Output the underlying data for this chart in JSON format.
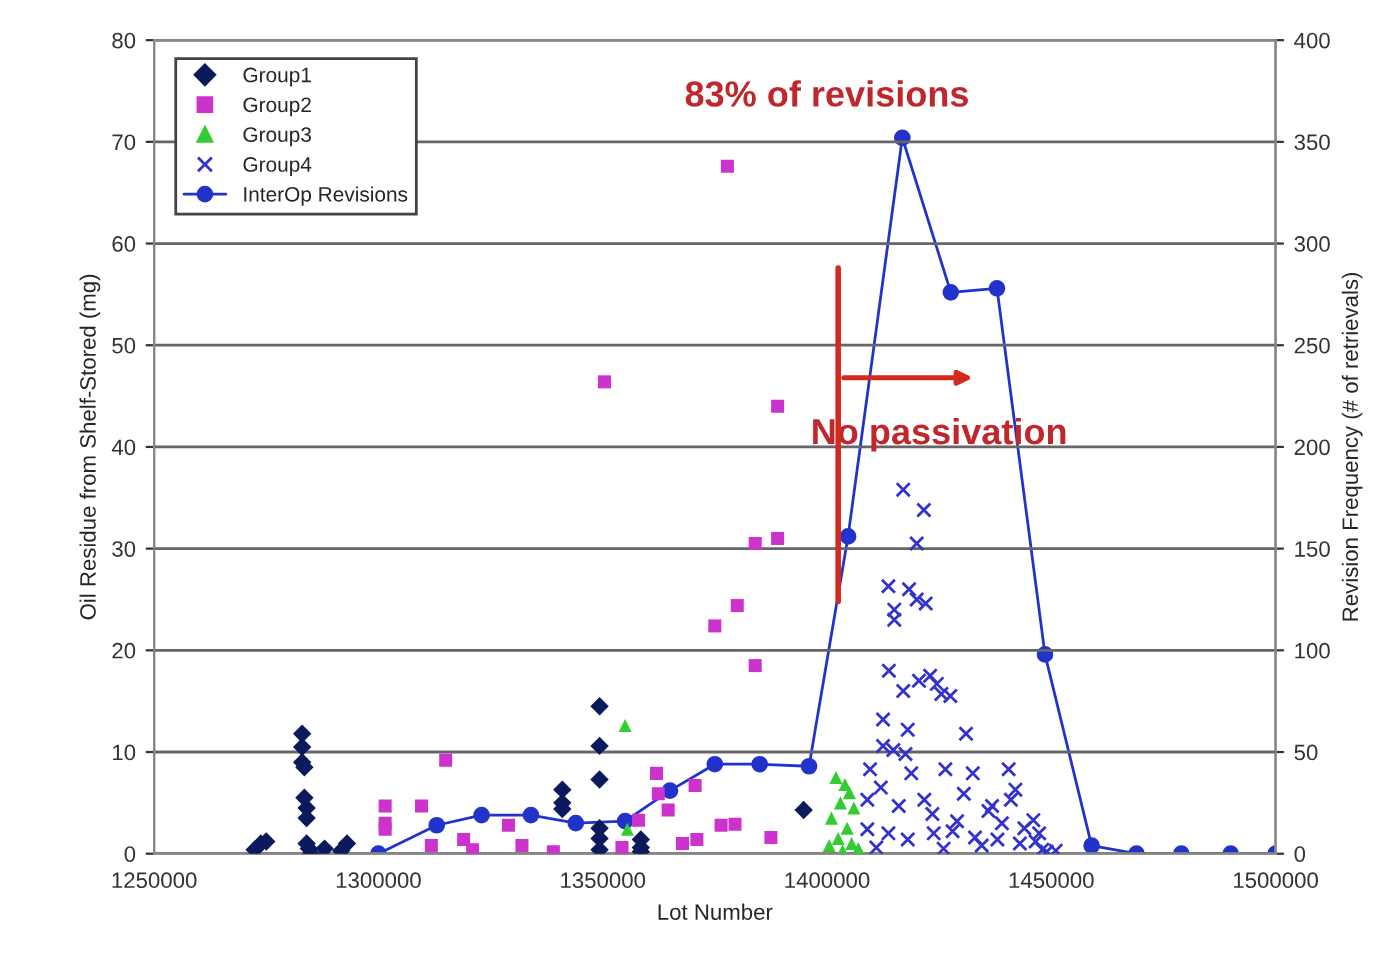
{
  "chart_data": {
    "type": "scatter",
    "xlabel": "Lot Number",
    "ylabel": "Oil Residue from Shelf-Stored (mg)",
    "y2label": "Revision Frequency (# of retrievals)",
    "annotations": [
      "83% of revisions",
      "No passivation"
    ],
    "xlim": [
      1250000,
      1500000
    ],
    "xticks": [
      1250000,
      1300000,
      1350000,
      1400000,
      1450000,
      1500000
    ],
    "ylim": [
      0,
      80
    ],
    "yticks": [
      0,
      10,
      20,
      30,
      40,
      50,
      60,
      70,
      80
    ],
    "y2lim": [
      0,
      400
    ],
    "y2ticks": [
      0,
      50,
      100,
      150,
      200,
      250,
      300,
      350,
      400
    ],
    "grid": "y",
    "legend": "top left",
    "series": [
      {
        "name": "Group1",
        "marker": "diamond",
        "color": "#0a1a5c",
        "x": [
          1272400,
          1273800,
          1275000,
          1283000,
          1283000,
          1283000,
          1283500,
          1283500,
          1284000,
          1284000,
          1284000,
          1284500,
          1285000,
          1288000,
          1291700,
          1293000,
          1341000,
          1341000,
          1341000,
          1349300,
          1349300,
          1349300,
          1349300,
          1349300,
          1349300,
          1358500,
          1358500,
          1358500,
          1394800
        ],
        "values": [
          0.4,
          1,
          1.2,
          11.8,
          10.5,
          9,
          8.5,
          5.5,
          4.5,
          3.5,
          1,
          0.5,
          0,
          0.5,
          0.3,
          1,
          6.3,
          5,
          4.4,
          14.5,
          10.6,
          7.3,
          2.5,
          1.5,
          0.4,
          1.4,
          0.6,
          0.2,
          4.3
        ]
      },
      {
        "name": "Group2",
        "marker": "square",
        "color": "#cc33cc",
        "x": [
          1301500,
          1301500,
          1301500,
          1315000,
          1309600,
          1311800,
          1319000,
          1321000,
          1329000,
          1332000,
          1339000,
          1354300,
          1358000,
          1362000,
          1362400,
          1364600,
          1367800,
          1371000,
          1375000,
          1380000,
          1384000,
          1384000,
          1370600,
          1376400,
          1379500,
          1377800,
          1350400,
          1389000,
          1389000,
          1387500
        ],
        "values": [
          4.7,
          3,
          2.4,
          9.2,
          4.7,
          0.8,
          1.4,
          0.4,
          2.8,
          0.8,
          0.2,
          0.6,
          3.3,
          7.9,
          5.9,
          4.3,
          1,
          1.4,
          22.4,
          24.4,
          30.5,
          18.5,
          6.7,
          2.8,
          2.9,
          67.6,
          46.4,
          44,
          31,
          1.6
        ]
      },
      {
        "name": "Group3",
        "marker": "triangle",
        "color": "#33cc33",
        "x": [
          1355000,
          1355500,
          1402000,
          1404000,
          1405000,
          1403000,
          1406000,
          1401000,
          1404500,
          1402500,
          1405500,
          1403500,
          1407000,
          1400500
        ],
        "values": [
          12.6,
          2.4,
          7.5,
          6.8,
          6,
          5,
          4.5,
          3.5,
          2.5,
          1.5,
          1,
          0.3,
          0.5,
          0.8
        ]
      },
      {
        "name": "Group4",
        "marker": "cross",
        "color": "#3333cc",
        "x": [
          1417000,
          1421600,
          1420000,
          1413700,
          1418300,
          1415000,
          1415000,
          1420000,
          1422000,
          1413800,
          1417000,
          1420500,
          1423000,
          1424500,
          1425500,
          1427500,
          1412500,
          1412500,
          1414800,
          1418000,
          1431000,
          1409600,
          1417500,
          1418800,
          1426400,
          1440500,
          1432500,
          1416000,
          1421700,
          1423500,
          1430500,
          1436800,
          1441000,
          1446000,
          1447300,
          1413700,
          1418000,
          1423800,
          1428000,
          1433000,
          1438000,
          1443000,
          1448000,
          1449000,
          1409000,
          1409000,
          1411000,
          1426000,
          1434500,
          1439000,
          1444000,
          1451000,
          1412000,
          1429000,
          1436000,
          1442000,
          1446500
        ],
        "values": [
          35.8,
          33.8,
          30.5,
          26.3,
          26,
          24,
          23,
          25,
          24.6,
          18,
          16,
          17,
          17.5,
          16.7,
          15.7,
          15.5,
          13.2,
          10.6,
          10.2,
          12.2,
          11.8,
          8.3,
          9.8,
          7.9,
          8.3,
          8.3,
          7.9,
          4.7,
          5.3,
          3.9,
          5.9,
          4.7,
          5.3,
          3.3,
          2,
          2,
          1.4,
          2,
          2.2,
          1.6,
          1.4,
          1,
          0.4,
          0.2,
          5.3,
          2.4,
          0.6,
          0.5,
          0.8,
          3,
          2.5,
          0.3,
          6.5,
          3.2,
          4.2,
          6.3,
          1.2
        ]
      },
      {
        "name": "InterOp Revisions",
        "type": "line",
        "axis": "y2",
        "marker": "circle",
        "line_style": "solid",
        "color": "#2233cc",
        "x": [
          1300000,
          1313000,
          1323000,
          1334000,
          1344000,
          1355000,
          1365000,
          1375000,
          1385000,
          1396000,
          1404700,
          1416800,
          1427600,
          1437900,
          1448600,
          1459000,
          1469000,
          1479000,
          1490000,
          1500000
        ],
        "values": [
          0,
          14,
          19,
          19,
          15,
          16,
          31,
          44,
          44,
          43,
          156,
          352,
          276,
          278,
          98,
          4,
          0,
          0,
          0,
          0
        ]
      }
    ]
  }
}
